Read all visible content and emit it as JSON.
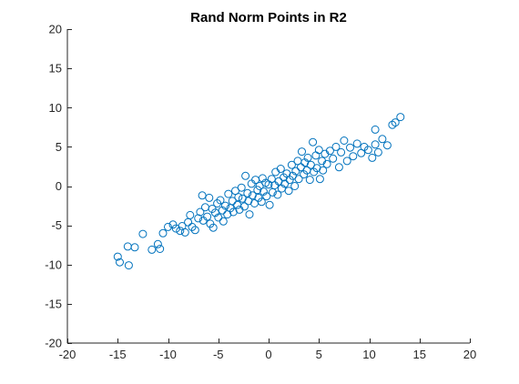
{
  "chart_data": {
    "type": "scatter",
    "title": "Rand Norm Points in R2",
    "xlabel": "",
    "ylabel": "",
    "xlim": [
      -20,
      20
    ],
    "ylim": [
      -20,
      20
    ],
    "xticks": [
      -20,
      -15,
      -10,
      -5,
      0,
      5,
      10,
      15,
      20
    ],
    "yticks": [
      -20,
      -15,
      -10,
      -5,
      0,
      5,
      10,
      15,
      20
    ],
    "grid": false,
    "marker": "open-circle",
    "color": "#0072BD",
    "series": [
      {
        "points": [
          [
            -15.0,
            -9.0
          ],
          [
            -14.8,
            -9.7
          ],
          [
            -14.0,
            -7.7
          ],
          [
            -13.9,
            -10.1
          ],
          [
            -13.3,
            -7.8
          ],
          [
            -12.5,
            -6.1
          ],
          [
            -11.6,
            -8.1
          ],
          [
            -11.0,
            -7.4
          ],
          [
            -10.8,
            -8.0
          ],
          [
            -10.5,
            -6.0
          ],
          [
            -10.0,
            -5.2
          ],
          [
            -9.5,
            -4.9
          ],
          [
            -9.2,
            -5.4
          ],
          [
            -8.8,
            -5.7
          ],
          [
            -8.6,
            -5.1
          ],
          [
            -8.3,
            -5.9
          ],
          [
            -8.0,
            -4.6
          ],
          [
            -7.8,
            -3.7
          ],
          [
            -7.6,
            -5.2
          ],
          [
            -7.3,
            -5.6
          ],
          [
            -7.0,
            -4.1
          ],
          [
            -6.8,
            -3.3
          ],
          [
            -6.6,
            -1.2
          ],
          [
            -6.5,
            -4.4
          ],
          [
            -6.3,
            -2.7
          ],
          [
            -6.1,
            -3.9
          ],
          [
            -5.9,
            -1.5
          ],
          [
            -5.8,
            -4.8
          ],
          [
            -5.6,
            -2.9
          ],
          [
            -5.5,
            -5.3
          ],
          [
            -5.3,
            -3.4
          ],
          [
            -5.1,
            -2.2
          ],
          [
            -5.0,
            -4.0
          ],
          [
            -4.8,
            -1.8
          ],
          [
            -4.6,
            -3.1
          ],
          [
            -4.5,
            -4.5
          ],
          [
            -4.3,
            -2.5
          ],
          [
            -4.1,
            -3.6
          ],
          [
            -4.0,
            -1.0
          ],
          [
            -3.8,
            -2.8
          ],
          [
            -3.6,
            -1.9
          ],
          [
            -3.5,
            -3.3
          ],
          [
            -3.3,
            -0.6
          ],
          [
            -3.1,
            -2.4
          ],
          [
            -3.0,
            -1.4
          ],
          [
            -2.9,
            -3.0
          ],
          [
            -2.7,
            -0.2
          ],
          [
            -2.6,
            -1.6
          ],
          [
            -2.4,
            -2.6
          ],
          [
            -2.3,
            1.3
          ],
          [
            -2.1,
            -0.9
          ],
          [
            -2.0,
            -1.9
          ],
          [
            -1.9,
            -3.6
          ],
          [
            -1.7,
            0.3
          ],
          [
            -1.6,
            -1.2
          ],
          [
            -1.4,
            -2.2
          ],
          [
            -1.3,
            0.8
          ],
          [
            -1.1,
            -0.5
          ],
          [
            -1.0,
            -1.5
          ],
          [
            -0.9,
            0.0
          ],
          [
            -0.7,
            -2.0
          ],
          [
            -0.6,
            1.0
          ],
          [
            -0.5,
            -0.7
          ],
          [
            -0.3,
            0.4
          ],
          [
            -0.2,
            -1.3
          ],
          [
            0.0,
            0.2
          ],
          [
            0.1,
            -2.4
          ],
          [
            0.3,
            0.9
          ],
          [
            0.4,
            -0.8
          ],
          [
            0.6,
            0.1
          ],
          [
            0.7,
            1.8
          ],
          [
            0.9,
            -1.1
          ],
          [
            1.0,
            0.6
          ],
          [
            1.2,
            2.2
          ],
          [
            1.3,
            -0.3
          ],
          [
            1.5,
            1.1
          ],
          [
            1.6,
            0.3
          ],
          [
            1.8,
            1.6
          ],
          [
            2.0,
            -0.6
          ],
          [
            2.1,
            0.8
          ],
          [
            2.3,
            2.7
          ],
          [
            2.4,
            1.3
          ],
          [
            2.6,
            0.0
          ],
          [
            2.7,
            1.9
          ],
          [
            2.9,
            3.2
          ],
          [
            3.0,
            0.9
          ],
          [
            3.2,
            2.4
          ],
          [
            3.3,
            4.4
          ],
          [
            3.5,
            1.5
          ],
          [
            3.6,
            3.0
          ],
          [
            3.8,
            2.0
          ],
          [
            3.9,
            3.6
          ],
          [
            4.1,
            0.8
          ],
          [
            4.2,
            2.7
          ],
          [
            4.4,
            5.6
          ],
          [
            4.5,
            1.8
          ],
          [
            4.7,
            3.9
          ],
          [
            4.8,
            2.3
          ],
          [
            5.0,
            4.6
          ],
          [
            5.1,
            0.9
          ],
          [
            5.3,
            3.2
          ],
          [
            5.4,
            2.0
          ],
          [
            5.6,
            4.1
          ],
          [
            5.8,
            2.8
          ],
          [
            6.1,
            4.5
          ],
          [
            6.4,
            3.5
          ],
          [
            6.7,
            5.0
          ],
          [
            7.0,
            2.4
          ],
          [
            7.2,
            4.3
          ],
          [
            7.5,
            5.8
          ],
          [
            7.8,
            3.2
          ],
          [
            8.1,
            4.9
          ],
          [
            8.4,
            3.8
          ],
          [
            8.8,
            5.4
          ],
          [
            9.2,
            4.2
          ],
          [
            9.5,
            5.0
          ],
          [
            9.9,
            4.6
          ],
          [
            10.3,
            3.6
          ],
          [
            10.6,
            5.3
          ],
          [
            10.9,
            4.3
          ],
          [
            11.3,
            6.0
          ],
          [
            11.8,
            5.2
          ],
          [
            10.6,
            7.2
          ],
          [
            12.3,
            7.8
          ],
          [
            12.6,
            8.1
          ],
          [
            13.1,
            8.8
          ]
        ]
      }
    ]
  }
}
